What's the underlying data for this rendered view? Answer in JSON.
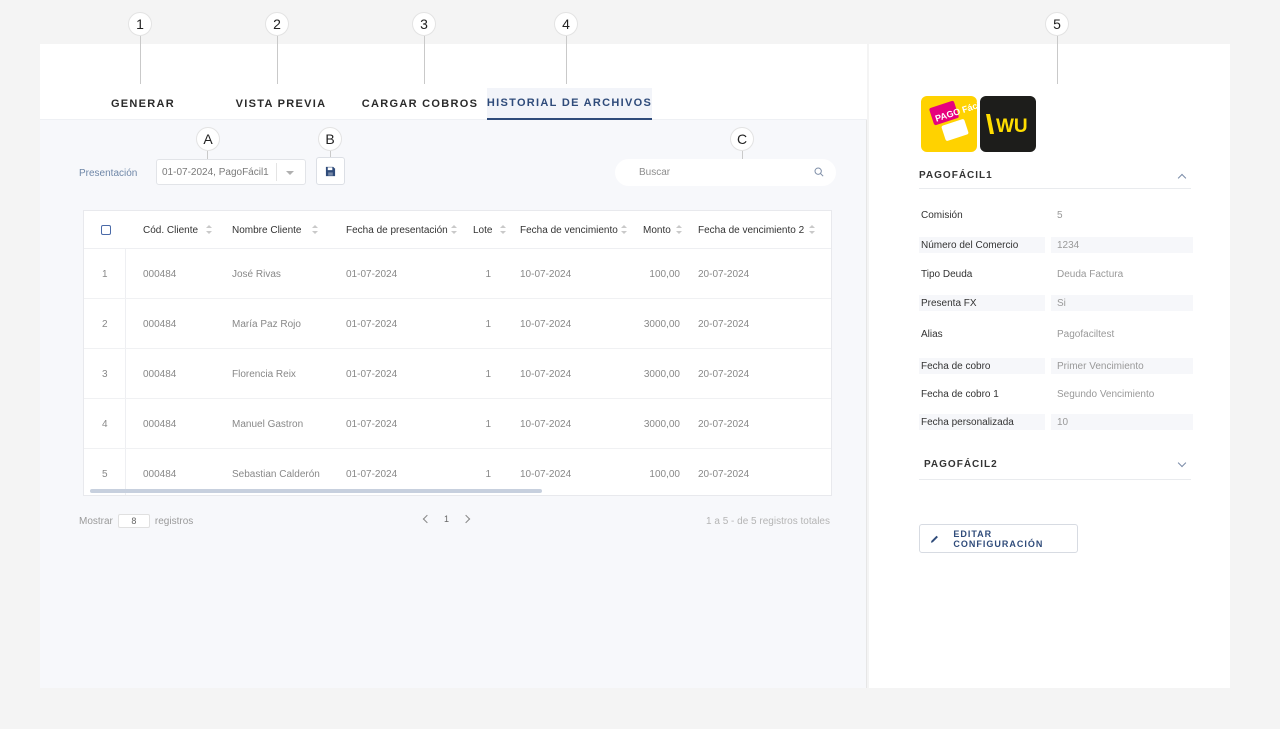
{
  "callouts": {
    "n1": "1",
    "n2": "2",
    "n3": "3",
    "n4": "4",
    "n5": "5",
    "a": "A",
    "b": "B",
    "c": "C"
  },
  "tabs": [
    {
      "label": "GENERAR",
      "active": false
    },
    {
      "label": "VISTA PREVIA",
      "active": false
    },
    {
      "label": "CARGAR COBROS",
      "active": false
    },
    {
      "label": "HISTORIAL DE ARCHIVOS",
      "active": true
    }
  ],
  "toolbar": {
    "presentation_label": "Presentación",
    "presentation_value": "01-07-2024, PagoFácil1",
    "save_icon": "floppy-disk-icon",
    "search_placeholder": "Buscar",
    "search_icon": "search-icon"
  },
  "table": {
    "columns": [
      "Cód. Cliente",
      "Nombre Cliente",
      "Fecha de presentación",
      "Lote",
      "Fecha de vencimiento",
      "Monto",
      "Fecha de vencimiento 2"
    ],
    "rows": [
      {
        "index": "1",
        "codigo": "000484",
        "nombre": "José Rivas",
        "fecha_presentacion": "01-07-2024",
        "lote": "1",
        "fecha_vencimiento": "10-07-2024",
        "monto": "100,00",
        "fecha_vencimiento_2": "20-07-2024"
      },
      {
        "index": "2",
        "codigo": "000484",
        "nombre": "María Paz Rojo",
        "fecha_presentacion": "01-07-2024",
        "lote": "1",
        "fecha_vencimiento": "10-07-2024",
        "monto": "3000,00",
        "fecha_vencimiento_2": "20-07-2024"
      },
      {
        "index": "3",
        "codigo": "000484",
        "nombre": "Florencia Reix",
        "fecha_presentacion": "01-07-2024",
        "lote": "1",
        "fecha_vencimiento": "10-07-2024",
        "monto": "3000,00",
        "fecha_vencimiento_2": "20-07-2024"
      },
      {
        "index": "4",
        "codigo": "000484",
        "nombre": "Manuel Gastron",
        "fecha_presentacion": "01-07-2024",
        "lote": "1",
        "fecha_vencimiento": "10-07-2024",
        "monto": "3000,00",
        "fecha_vencimiento_2": "20-07-2024"
      },
      {
        "index": "5",
        "codigo": "000484",
        "nombre": "Sebastian Calderón",
        "fecha_presentacion": "01-07-2024",
        "lote": "1",
        "fecha_vencimiento": "10-07-2024",
        "monto": "100,00",
        "fecha_vencimiento_2": "20-07-2024"
      }
    ]
  },
  "pagination": {
    "show_label": "Mostrar",
    "page_size": "8",
    "records_label": "registros",
    "current_page": "1",
    "summary": "1 a 5 - de 5 registros totales"
  },
  "side": {
    "logos": [
      {
        "name": "pagofacil-logo",
        "text": "PAGO Fácil",
        "bg": "#ffd200",
        "fg": "#e6007e"
      },
      {
        "name": "western-union-logo",
        "text": "WU",
        "bg": "#1d1d1b",
        "fg": "#ffdd00"
      }
    ],
    "section1": {
      "title": "PAGOFÁCIL1",
      "rows": [
        {
          "key": "Comisión",
          "value": "5"
        },
        {
          "key": "Número del Comercio",
          "value": "1234"
        },
        {
          "key": "Tipo Deuda",
          "value": "Deuda Factura"
        },
        {
          "key": "Presenta FX",
          "value": "Si"
        },
        {
          "key": "Alias",
          "value": "Pagofaciltest"
        },
        {
          "key": "Fecha de cobro",
          "value": "Primer Vencimiento"
        },
        {
          "key": "Fecha de cobro 1",
          "value": "Segundo Vencimiento"
        },
        {
          "key": "Fecha personalizada",
          "value": "10"
        }
      ]
    },
    "section2": {
      "title": "PAGOFÁCIL2"
    },
    "edit_button": "EDITAR CONFIGURACIÓN"
  },
  "colors": {
    "accent": "#2f4b7a",
    "page_bg": "#f4f4f4"
  }
}
